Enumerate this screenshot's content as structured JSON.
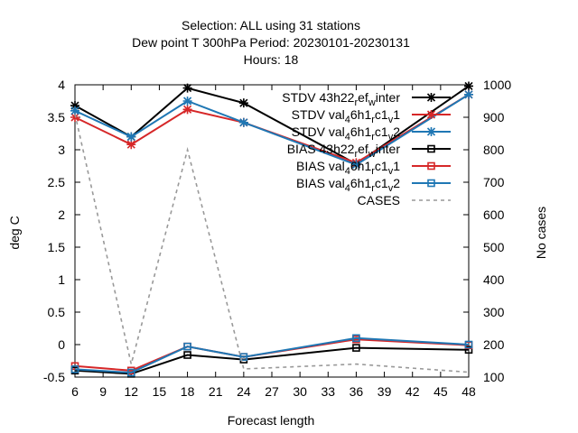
{
  "chart_data": {
    "type": "line",
    "title_lines": [
      "Selection: ALL using    31 stations",
      "Dew point T 300hPa   Period: 20230101-20230131",
      "Hours:  18"
    ],
    "xlabel": "Forecast length",
    "ylabel": "deg C",
    "y2label": "No cases",
    "xlim": [
      6,
      48
    ],
    "ylim": [
      -0.5,
      4
    ],
    "y2lim": [
      100,
      1000
    ],
    "x_ticks": [
      6,
      9,
      12,
      15,
      18,
      21,
      24,
      27,
      30,
      33,
      36,
      39,
      42,
      45,
      48
    ],
    "y_ticks": [
      -0.5,
      0,
      0.5,
      1,
      1.5,
      2,
      2.5,
      3,
      3.5,
      4
    ],
    "y_tick_labels": [
      "-0.5",
      "0",
      "0.5",
      "1",
      "1.5",
      "2",
      "2.5",
      "3",
      "3.5",
      "4"
    ],
    "y2_ticks": [
      100,
      200,
      300,
      400,
      500,
      600,
      700,
      800,
      900,
      1000
    ],
    "x": [
      6,
      12,
      18,
      24,
      36,
      48
    ],
    "legend_position": "top-right",
    "series": [
      {
        "name": "STDV 43h22_ref_winter",
        "legend": {
          "base": "STDV 43h22",
          "sub1": "r",
          "mid": "ef",
          "sub2": "w",
          "tail": "inter"
        },
        "color": "#000000",
        "marker": "star",
        "axis": "y",
        "values": [
          3.68,
          3.2,
          3.95,
          3.72,
          2.78,
          3.98
        ]
      },
      {
        "name": "STDV val_46h1_rc1_v1",
        "legend": {
          "base": "STDV val",
          "sub1": "4",
          "mid": "6h1",
          "sub2": "r",
          "mid2": "c1",
          "sub3": "v",
          "tail": "1"
        },
        "color": "#d62728",
        "marker": "star",
        "axis": "y",
        "values": [
          3.5,
          3.08,
          3.62,
          3.42,
          2.8,
          3.85
        ]
      },
      {
        "name": "STDV val_46h1_rc1_v2",
        "legend": {
          "base": "STDV val",
          "sub1": "4",
          "mid": "6h1",
          "sub2": "r",
          "mid2": "c1",
          "sub3": "v",
          "tail": "2"
        },
        "color": "#1f77b4",
        "marker": "star",
        "axis": "y",
        "values": [
          3.6,
          3.2,
          3.75,
          3.42,
          2.77,
          3.85
        ]
      },
      {
        "name": "BIAS 43h22_ref_winter",
        "legend": {
          "base": "BIAS 43h22",
          "sub1": "r",
          "mid": "ef",
          "sub2": "w",
          "tail": "inter"
        },
        "color": "#000000",
        "marker": "square",
        "axis": "y",
        "values": [
          -0.4,
          -0.45,
          -0.16,
          -0.23,
          -0.05,
          -0.08
        ]
      },
      {
        "name": "BIAS val_46h1_rc1_v1",
        "legend": {
          "base": "BIAS val",
          "sub1": "4",
          "mid": "6h1",
          "sub2": "r",
          "mid2": "c1",
          "sub3": "v",
          "tail": "1"
        },
        "color": "#d62728",
        "marker": "square",
        "axis": "y",
        "values": [
          -0.33,
          -0.4,
          -0.03,
          -0.19,
          0.08,
          -0.01
        ]
      },
      {
        "name": "BIAS val_46h1_rc1_v2",
        "legend": {
          "base": "BIAS val",
          "sub1": "4",
          "mid": "6h1",
          "sub2": "r",
          "mid2": "c1",
          "sub3": "v",
          "tail": "2"
        },
        "color": "#1f77b4",
        "marker": "square",
        "axis": "y",
        "values": [
          -0.38,
          -0.43,
          -0.03,
          -0.19,
          0.1,
          0.0
        ]
      },
      {
        "name": "CASES",
        "legend": {
          "base": "CASES"
        },
        "color": "#999999",
        "marker": "none",
        "dashed": true,
        "axis": "y2",
        "values": [
          910,
          140,
          800,
          125,
          140,
          115
        ]
      }
    ]
  }
}
